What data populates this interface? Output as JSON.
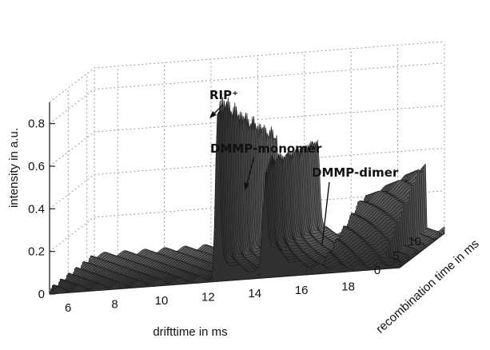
{
  "chart_data": {
    "type": "surface",
    "title": "",
    "xlabel": "drifttime in ms",
    "ylabel": "recombination time in ms",
    "zlabel": "intensity in a.u.",
    "xlim": [
      5,
      20
    ],
    "ylim": [
      0,
      12
    ],
    "zlim": [
      0,
      0.9
    ],
    "xticks": [
      "6",
      "8",
      "10",
      "12",
      "14",
      "16",
      "18"
    ],
    "yticks": [
      "0",
      "5",
      "10"
    ],
    "zticks": [
      "0",
      "0.2",
      "0.4",
      "0.6",
      "0.8"
    ],
    "grid": true,
    "peaks": [
      {
        "name": "RIP⁺",
        "drifttime": 12.2,
        "max_intensity": 0.76,
        "at_recombination_time": 0
      },
      {
        "name": "DMMP-monomer",
        "drifttime": 14.2,
        "max_intensity": 0.41,
        "at_recombination_time": 0
      },
      {
        "name": "DMMP-dimer",
        "drifttime": 17.8,
        "max_intensity": 0.3,
        "at_recombination_time": 10
      }
    ],
    "annotations": [
      {
        "text": "RIP⁺",
        "target_peak": "RIP⁺"
      },
      {
        "text": "DMMP-monomer",
        "target_peak": "DMMP-monomer"
      },
      {
        "text": "DMMP-dimer",
        "target_peak": "DMMP-dimer"
      }
    ]
  }
}
